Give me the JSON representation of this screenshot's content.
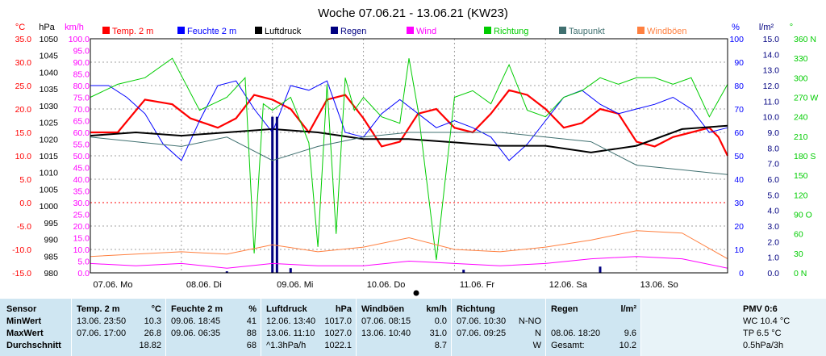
{
  "title": "Woche 07.06.21 - 13.06.21 (KW23)",
  "colors": {
    "temp": "#ff0000",
    "feuchte": "#0000ff",
    "luftdruck": "#000000",
    "regen": "#000080",
    "wind": "#ff00ff",
    "richtung": "#00cc00",
    "taupunkt": "#407070",
    "windboeen": "#ff8040",
    "stats_bg": "#cfe6f2"
  },
  "chart_data": {
    "type": "line",
    "title": "Woche 07.06.21 - 13.06.21 (KW23)",
    "legend": [
      {
        "name": "Temp. 2 m",
        "color": "#ff0000"
      },
      {
        "name": "Feuchte 2 m",
        "color": "#0000ff"
      },
      {
        "name": "Luftdruck",
        "color": "#000000"
      },
      {
        "name": "Regen",
        "color": "#000080"
      },
      {
        "name": "Wind",
        "color": "#ff00ff"
      },
      {
        "name": "Richtung",
        "color": "#00cc00"
      },
      {
        "name": "Taupunkt",
        "color": "#407070"
      },
      {
        "name": "Windböen",
        "color": "#ff8040"
      }
    ],
    "legend_placement": "top",
    "grid": true,
    "axes": {
      "temp": {
        "unit": "°C",
        "min": -15,
        "max": 35,
        "ticks": [
          "-15.0",
          "-10.0",
          "-5.0",
          "0.0",
          "5.0",
          "10.0",
          "15.0",
          "20.0",
          "25.0",
          "30.0",
          "35.0"
        ]
      },
      "pressure": {
        "unit": "hPa",
        "min": 980,
        "max": 1050,
        "ticks": [
          "980",
          "985",
          "990",
          "995",
          "1000",
          "1005",
          "1010",
          "1015",
          "1020",
          "1025",
          "1030",
          "1035",
          "1040",
          "1045",
          "1050"
        ]
      },
      "wind": {
        "unit": "km/h",
        "min": 0,
        "max": 100,
        "ticks": [
          "0.0",
          "5.0",
          "10.0",
          "15.0",
          "20.0",
          "25.0",
          "30.0",
          "35.0",
          "40.0",
          "45.0",
          "50.0",
          "55.0",
          "60.0",
          "65.0",
          "70.0",
          "75.0",
          "80.0",
          "85.0",
          "90.0",
          "95.0",
          "100.0"
        ]
      },
      "humidity": {
        "unit": "%",
        "min": 0,
        "max": 100,
        "ticks": [
          "0",
          "10",
          "20",
          "30",
          "40",
          "50",
          "60",
          "70",
          "80",
          "90",
          "100"
        ]
      },
      "rain": {
        "unit": "l/m²",
        "min": 0,
        "max": 15,
        "ticks": [
          "0.0",
          "1.0",
          "2.0",
          "3.0",
          "4.0",
          "5.0",
          "6.0",
          "7.0",
          "8.0",
          "9.0",
          "10.0",
          "11.0",
          "12.0",
          "13.0",
          "14.0",
          "15.0"
        ]
      },
      "direction": {
        "unit": "°",
        "min": 0,
        "max": 360,
        "ticks": [
          "0 N",
          "30",
          "60",
          "90 O",
          "120",
          "150",
          "180 S",
          "210",
          "240",
          "270 W",
          "300",
          "330",
          "360 N"
        ]
      }
    },
    "x_days": [
      "07.06. Mo",
      "08.06. Di",
      "09.06. Mi",
      "10.06. Do",
      "11.06. Fr",
      "12.06. Sa",
      "13.06. So"
    ],
    "series": [
      {
        "name": "Temp. 2 m",
        "axis": "temp",
        "x": [
          0,
          0.3,
          0.6,
          0.9,
          1.1,
          1.4,
          1.6,
          1.8,
          2.0,
          2.2,
          2.4,
          2.6,
          2.8,
          3.0,
          3.2,
          3.4,
          3.6,
          3.8,
          4.0,
          4.2,
          4.4,
          4.6,
          4.8,
          5.0,
          5.2,
          5.4,
          5.6,
          5.8,
          6.0,
          6.2,
          6.4,
          6.6,
          6.8,
          6.9,
          7.0
        ],
        "y": [
          15,
          15,
          22,
          21,
          18,
          16,
          18,
          23,
          22,
          20,
          15,
          22,
          23,
          18,
          12,
          13,
          19,
          20,
          16,
          15,
          19,
          24,
          23,
          20,
          16,
          17,
          20,
          19,
          13,
          12,
          14,
          15,
          16,
          14,
          10
        ]
      },
      {
        "name": "Feuchte 2 m",
        "axis": "humidity",
        "x": [
          0,
          0.2,
          0.4,
          0.6,
          0.8,
          1.0,
          1.2,
          1.4,
          1.6,
          1.8,
          2.0,
          2.2,
          2.4,
          2.6,
          2.8,
          3.0,
          3.2,
          3.4,
          3.6,
          3.8,
          4.0,
          4.2,
          4.4,
          4.6,
          4.8,
          5.0,
          5.2,
          5.4,
          5.6,
          5.8,
          6.0,
          6.2,
          6.4,
          6.6,
          6.8,
          7.0
        ],
        "y": [
          80,
          80,
          75,
          68,
          55,
          48,
          65,
          80,
          82,
          70,
          60,
          80,
          78,
          82,
          60,
          58,
          68,
          74,
          68,
          62,
          65,
          62,
          58,
          48,
          55,
          65,
          75,
          78,
          72,
          68,
          70,
          72,
          75,
          70,
          60,
          62
        ]
      },
      {
        "name": "Luftdruck",
        "axis": "pressure",
        "x": [
          0,
          0.5,
          1.0,
          1.5,
          2.0,
          2.5,
          3.0,
          3.5,
          4.0,
          4.5,
          5.0,
          5.5,
          6.0,
          6.5,
          7.0
        ],
        "y": [
          1021,
          1022,
          1021,
          1022,
          1023,
          1022,
          1020,
          1020,
          1019,
          1018,
          1018,
          1016,
          1018,
          1023,
          1024
        ]
      },
      {
        "name": "Regen",
        "axis": "rain",
        "x": [
          1.5,
          2.0,
          2.05,
          2.2,
          4.1,
          5.6
        ],
        "y": [
          0.1,
          10.0,
          10.0,
          0.3,
          0.2,
          0.4
        ]
      },
      {
        "name": "Wind",
        "axis": "wind",
        "x": [
          0,
          0.5,
          1.0,
          1.5,
          2.0,
          2.5,
          3.0,
          3.5,
          4.0,
          4.5,
          5.0,
          5.5,
          6.0,
          6.5,
          7.0
        ],
        "y": [
          4,
          3,
          4,
          2,
          4,
          3,
          3,
          5,
          4,
          3,
          4,
          6,
          7,
          6,
          2
        ]
      },
      {
        "name": "Richtung",
        "axis": "direction",
        "x": [
          0,
          0.3,
          0.6,
          0.9,
          1.2,
          1.5,
          1.7,
          1.8,
          1.9,
          2.0,
          2.2,
          2.4,
          2.5,
          2.6,
          2.7,
          2.8,
          2.9,
          3.0,
          3.2,
          3.4,
          3.5,
          3.6,
          3.8,
          4.0,
          4.2,
          4.4,
          4.6,
          4.8,
          5.0,
          5.2,
          5.4,
          5.6,
          5.8,
          6.0,
          6.2,
          6.4,
          6.6,
          6.8,
          7.0
        ],
        "y": [
          270,
          290,
          300,
          330,
          250,
          270,
          300,
          30,
          260,
          250,
          270,
          200,
          40,
          290,
          60,
          300,
          250,
          270,
          240,
          230,
          330,
          250,
          20,
          270,
          280,
          260,
          320,
          250,
          240,
          270,
          280,
          300,
          290,
          300,
          300,
          290,
          300,
          240,
          290
        ]
      },
      {
        "name": "Taupunkt",
        "axis": "temp",
        "x": [
          0,
          0.5,
          1.0,
          1.5,
          2.0,
          2.5,
          3.0,
          3.5,
          4.0,
          4.5,
          5.0,
          5.5,
          6.0,
          6.5,
          7.0
        ],
        "y": [
          14,
          13,
          12,
          14,
          9,
          12,
          14,
          15,
          15,
          15,
          14,
          13,
          8,
          7,
          6
        ]
      },
      {
        "name": "Windböen",
        "axis": "wind",
        "x": [
          0,
          0.5,
          1.0,
          1.5,
          2.0,
          2.5,
          3.0,
          3.5,
          4.0,
          4.5,
          5.0,
          5.5,
          6.0,
          6.5,
          7.0
        ],
        "y": [
          7,
          8,
          9,
          8,
          12,
          9,
          11,
          15,
          10,
          9,
          11,
          14,
          18,
          17,
          6
        ]
      }
    ]
  },
  "stats": {
    "labels": {
      "title": "Sensor",
      "min": "MinWert",
      "max": "MaxWert",
      "avg": "Durchschnitt"
    },
    "temp": {
      "title": "Temp. 2 m",
      "unit": "°C",
      "min_time": "13.06. 23:50",
      "min_val": "10.3",
      "max_time": "07.06. 17:00",
      "max_val": "26.8",
      "avg_val": "18.82"
    },
    "feuchte": {
      "title": "Feuchte 2 m",
      "unit": "%",
      "min_time": "09.06. 18:45",
      "min_val": "41",
      "max_time": "09.06. 06:35",
      "max_val": "88",
      "avg_val": "68"
    },
    "luftdruck": {
      "title": "Luftdruck",
      "unit": "hPa",
      "min_time": "12.06. 13:40",
      "min_val": "1017.0",
      "max_time": "13.06. 11:10",
      "max_val": "1027.0",
      "avg_time": "^1.3hPa/h",
      "avg_val": "1022.1"
    },
    "windboeen": {
      "title": "Windböen",
      "unit": "km/h",
      "min_time": "07.06. 08:15",
      "min_val": "0.0",
      "max_time": "13.06. 10:40",
      "max_val": "31.0",
      "avg_val": "8.7"
    },
    "richtung": {
      "title": "Richtung",
      "min_time": "07.06. 10:30",
      "min_val": "N-NO",
      "max_time": "07.06. 09:25",
      "max_val": "N",
      "avg_val": "W"
    },
    "regen": {
      "title": "Regen",
      "unit": "l/m²",
      "max_time": "08.06. 18:20",
      "max_val": "9.6",
      "total_label": "Gesamt:",
      "total_val": "10.2"
    },
    "pmv": {
      "title": "PMV 0:6",
      "wc": "WC 10.4 °C",
      "tp": "TP 6.5 °C",
      "rate": "0.5hPa/3h"
    }
  }
}
